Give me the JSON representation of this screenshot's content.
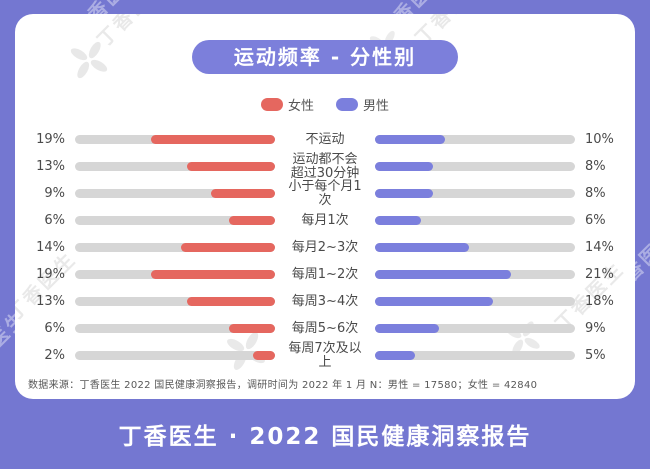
{
  "title": "运动频率 - 分性别",
  "legend": {
    "female": "女性",
    "male": "男性"
  },
  "watermark_text": "丁香医生",
  "source_note": "数据来源：丁香医生 2022 国民健康洞察报告，调研时间为 2022 年 1 月 N：男性 = 17580；女性 = 42840",
  "footer_title": "丁香医生 · 2022 国民健康洞察报告",
  "colors": {
    "background_purple": "#7477d1",
    "title_pill_purple": "#7c7fdb",
    "female_red": "#e5675f",
    "male_purple": "#7b7fdd",
    "bar_track_gray": "#d6d6d6"
  },
  "chart_data": {
    "type": "bar",
    "variant": "bidirectional-tornado",
    "unit": "%",
    "title": "运动频率 - 分性别",
    "legend_position": "top-center",
    "categories": [
      "不运动",
      "运动都不会\n超过30分钟",
      "小于每个月1次",
      "每月1次",
      "每月2~3次",
      "每周1~2次",
      "每周3~4次",
      "每周5~6次",
      "每周7次及以上"
    ],
    "series": [
      {
        "name": "女性",
        "side": "left",
        "color": "#e5675f",
        "values": [
          19,
          13,
          9,
          6,
          14,
          19,
          13,
          6,
          2
        ]
      },
      {
        "name": "男性",
        "side": "right",
        "color": "#7b7fdd",
        "values": [
          10,
          8,
          8,
          6,
          14,
          21,
          18,
          9,
          5
        ]
      }
    ]
  }
}
